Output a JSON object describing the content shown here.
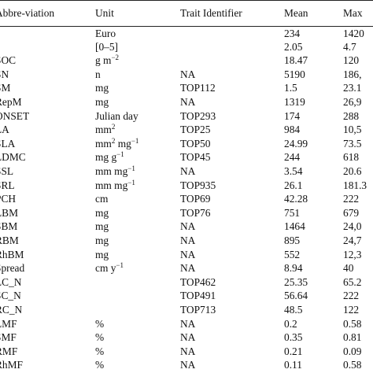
{
  "table": {
    "headers": [
      "Abbre-viation",
      "Unit",
      "Trait Identifier",
      "Mean",
      "Max"
    ],
    "rows": [
      {
        "abbr": "",
        "unit": "Euro",
        "unit_sup": "",
        "unit2": "",
        "unit2_sup": "",
        "trait": "",
        "mean": "234",
        "max": "1420"
      },
      {
        "abbr": "",
        "unit": "[0–5]",
        "unit_sup": "",
        "unit2": "",
        "unit2_sup": "",
        "trait": "",
        "mean": "2.05",
        "max": "4.7"
      },
      {
        "abbr": "SOC",
        "unit": "g m",
        "unit_sup": "−2",
        "unit2": "",
        "unit2_sup": "",
        "trait": "",
        "mean": "18.47",
        "max": "120"
      },
      {
        "abbr": "SN",
        "unit": "n",
        "unit_sup": "",
        "unit2": "",
        "unit2_sup": "",
        "trait": "NA",
        "mean": "5190",
        "max": "186,"
      },
      {
        "abbr": "SM",
        "unit": "mg",
        "unit_sup": "",
        "unit2": "",
        "unit2_sup": "",
        "trait": "TOP112",
        "mean": "1.5",
        "max": "23.1"
      },
      {
        "abbr": "RepM",
        "unit": "mg",
        "unit_sup": "",
        "unit2": "",
        "unit2_sup": "",
        "trait": "NA",
        "mean": "1319",
        "max": "26,9"
      },
      {
        "abbr": "ONSET",
        "unit": "Julian day",
        "unit_sup": "",
        "unit2": "",
        "unit2_sup": "",
        "trait": "TOP293",
        "mean": "174",
        "max": "288"
      },
      {
        "abbr": "LA",
        "unit": "mm",
        "unit_sup": "2",
        "unit2": "",
        "unit2_sup": "",
        "trait": "TOP25",
        "mean": "984",
        "max": "10,5"
      },
      {
        "abbr": "SLA",
        "unit": "mm",
        "unit_sup": "2",
        "unit2": " mg",
        "unit2_sup": "−1",
        "trait": "TOP50",
        "mean": "24.99",
        "max": "73.5"
      },
      {
        "abbr": "LDMC",
        "unit": "mg g",
        "unit_sup": "−1",
        "unit2": "",
        "unit2_sup": "",
        "trait": "TOP45",
        "mean": "244",
        "max": "618"
      },
      {
        "abbr": "SSL",
        "unit": "mm mg",
        "unit_sup": "−1",
        "unit2": "",
        "unit2_sup": "",
        "trait": "NA",
        "mean": "3.54",
        "max": "20.6"
      },
      {
        "abbr": "SRL",
        "unit": "mm mg",
        "unit_sup": "−1",
        "unit2": "",
        "unit2_sup": "",
        "trait": "TOP935",
        "mean": "26.1",
        "max": "181.3"
      },
      {
        "abbr": "PCH",
        "unit": "cm",
        "unit_sup": "",
        "unit2": "",
        "unit2_sup": "",
        "trait": "TOP69",
        "mean": "42.28",
        "max": "222"
      },
      {
        "abbr": "LBM",
        "unit": "mg",
        "unit_sup": "",
        "unit2": "",
        "unit2_sup": "",
        "trait": "TOP76",
        "mean": "751",
        "max": "679"
      },
      {
        "abbr": "SBM",
        "unit": "mg",
        "unit_sup": "",
        "unit2": "",
        "unit2_sup": "",
        "trait": "NA",
        "mean": "1464",
        "max": "24,0"
      },
      {
        "abbr": "RBM",
        "unit": "mg",
        "unit_sup": "",
        "unit2": "",
        "unit2_sup": "",
        "trait": "NA",
        "mean": "895",
        "max": "24,7"
      },
      {
        "abbr": "RhBM",
        "unit": "mg",
        "unit_sup": "",
        "unit2": "",
        "unit2_sup": "",
        "trait": "NA",
        "mean": "552",
        "max": "12,3"
      },
      {
        "abbr": "Spread",
        "unit": "cm y",
        "unit_sup": "−1",
        "unit2": "",
        "unit2_sup": "",
        "trait": "NA",
        "mean": "8.94",
        "max": "40"
      },
      {
        "abbr": "LC_N",
        "unit": "",
        "unit_sup": "",
        "unit2": "",
        "unit2_sup": "",
        "trait": "TOP462",
        "mean": "25.35",
        "max": "65.2"
      },
      {
        "abbr": "SC_N",
        "unit": "",
        "unit_sup": "",
        "unit2": "",
        "unit2_sup": "",
        "trait": "TOP491",
        "mean": "56.64",
        "max": "222"
      },
      {
        "abbr": "RC_N",
        "unit": "",
        "unit_sup": "",
        "unit2": "",
        "unit2_sup": "",
        "trait": "TOP713",
        "mean": "48.5",
        "max": "122"
      },
      {
        "abbr": "LMF",
        "unit": "%",
        "unit_sup": "",
        "unit2": "",
        "unit2_sup": "",
        "trait": "NA",
        "mean": "0.2",
        "max": "0.58"
      },
      {
        "abbr": "SMF",
        "unit": "%",
        "unit_sup": "",
        "unit2": "",
        "unit2_sup": "",
        "trait": "NA",
        "mean": "0.35",
        "max": "0.81"
      },
      {
        "abbr": "RMF",
        "unit": "%",
        "unit_sup": "",
        "unit2": "",
        "unit2_sup": "",
        "trait": "NA",
        "mean": "0.21",
        "max": "0.09"
      },
      {
        "abbr": "RhMF",
        "unit": "%",
        "unit_sup": "",
        "unit2": "",
        "unit2_sup": "",
        "trait": "NA",
        "mean": "0.11",
        "max": "0.58"
      }
    ]
  }
}
